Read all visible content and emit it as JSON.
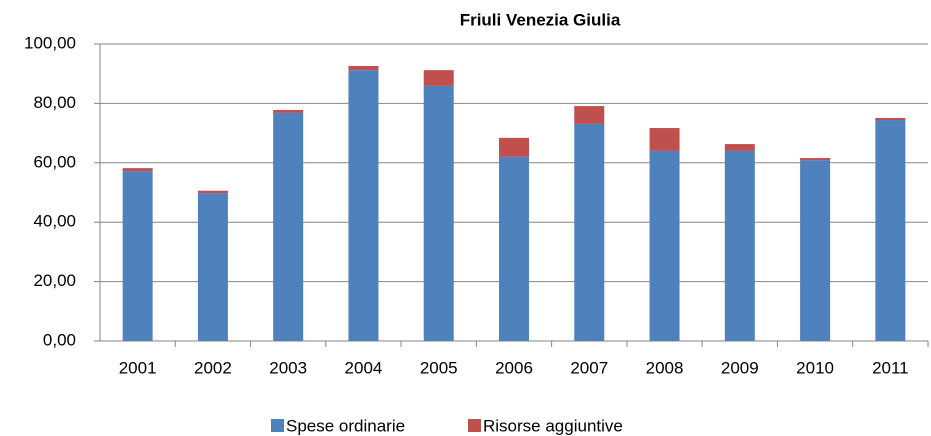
{
  "chart_data": {
    "type": "stacked_bar",
    "title": "Friuli Venezia Giulia",
    "categories": [
      "2001",
      "2002",
      "2003",
      "2004",
      "2005",
      "2006",
      "2007",
      "2008",
      "2009",
      "2010",
      "2011"
    ],
    "series": [
      {
        "name": "Spese ordinarie",
        "color": "#4f81bd",
        "values": [
          57.2,
          49.8,
          76.8,
          91.2,
          85.9,
          62.0,
          73.1,
          64.0,
          64.0,
          60.9,
          74.4
        ]
      },
      {
        "name": "Risorse aggiuntive",
        "color": "#c0504d",
        "values": [
          1.0,
          0.8,
          1.0,
          1.4,
          5.3,
          6.4,
          6.0,
          7.7,
          2.3,
          0.7,
          0.7
        ]
      }
    ],
    "ylim": [
      0,
      100
    ],
    "yticks": [
      {
        "value": 0,
        "label": "0,00"
      },
      {
        "value": 20,
        "label": "20,00"
      },
      {
        "value": 40,
        "label": "40,00"
      },
      {
        "value": 60,
        "label": "60,00"
      },
      {
        "value": 80,
        "label": "80,00"
      },
      {
        "value": 100,
        "label": "100,00"
      }
    ],
    "grid": true,
    "legend": "bottom"
  }
}
